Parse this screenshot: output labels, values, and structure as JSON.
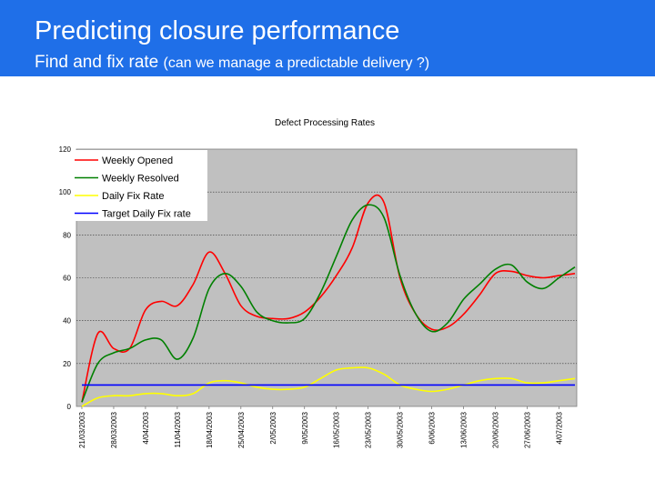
{
  "slide": {
    "title": "Predicting closure performance",
    "subtitle_main": "Find and fix rate",
    "subtitle_note": "(can we manage a predictable delivery ?)"
  },
  "chart_data": {
    "type": "line",
    "title": "Defect Processing Rates",
    "xlabel": "",
    "ylabel": "",
    "ylim": [
      0,
      120
    ],
    "yticks": [
      0,
      20,
      40,
      60,
      80,
      100,
      120
    ],
    "grid": true,
    "legend_position": "top-left",
    "plot_background": "#c0c0c0",
    "x_tick_labels": [
      "21/03/2003",
      "28/03/2003",
      "4/04/2003",
      "11/04/2003",
      "18/04/2003",
      "25/04/2003",
      "2/05/2003",
      "9/05/2003",
      "16/05/2003",
      "23/05/2003",
      "30/05/2003",
      "6/06/2003",
      "13/06/2003",
      "20/06/2003",
      "27/06/2003",
      "4/07/2003"
    ],
    "x": [
      "21/03/2003",
      "24/03/2003",
      "28/03/2003",
      "31/03/2003",
      "4/04/2003",
      "7/04/2003",
      "11/04/2003",
      "14/04/2003",
      "18/04/2003",
      "21/04/2003",
      "25/04/2003",
      "28/04/2003",
      "2/05/2003",
      "5/05/2003",
      "9/05/2003",
      "12/05/2003",
      "16/05/2003",
      "19/05/2003",
      "23/05/2003",
      "26/05/2003",
      "30/05/2003",
      "2/06/2003",
      "6/06/2003",
      "9/06/2003",
      "13/06/2003",
      "16/06/2003",
      "20/06/2003",
      "23/06/2003",
      "27/06/2003",
      "30/06/2003",
      "4/07/2003",
      "7/07/2003"
    ],
    "series": [
      {
        "name": "Weekly Opened",
        "color": "#ff0000",
        "values": [
          2,
          34,
          27,
          27,
          45,
          49,
          47,
          57,
          72,
          62,
          47,
          42,
          41,
          41,
          44,
          51,
          61,
          74,
          95,
          95,
          60,
          43,
          36,
          37,
          43,
          52,
          62,
          63,
          61,
          60,
          61,
          62
        ]
      },
      {
        "name": "Weekly Resolved",
        "color": "#008000",
        "values": [
          2,
          20,
          25,
          27,
          31,
          31,
          22,
          32,
          55,
          62,
          56,
          44,
          40,
          39,
          41,
          53,
          70,
          87,
          94,
          88,
          61,
          43,
          35,
          39,
          50,
          57,
          64,
          66,
          58,
          55,
          60,
          65
        ]
      },
      {
        "name": "Daily Fix Rate",
        "color": "#ffff00",
        "values": [
          0,
          4,
          5,
          5,
          6,
          6,
          5,
          6,
          11,
          12,
          11,
          9,
          8,
          8,
          9,
          13,
          17,
          18,
          18,
          15,
          10,
          8,
          7,
          8,
          10,
          12,
          13,
          13,
          11,
          11,
          12,
          13
        ]
      },
      {
        "name": "Target Daily Fix rate",
        "color": "#0000ff",
        "values": [
          10,
          10,
          10,
          10,
          10,
          10,
          10,
          10,
          10,
          10,
          10,
          10,
          10,
          10,
          10,
          10,
          10,
          10,
          10,
          10,
          10,
          10,
          10,
          10,
          10,
          10,
          10,
          10,
          10,
          10,
          10,
          10
        ]
      }
    ]
  }
}
